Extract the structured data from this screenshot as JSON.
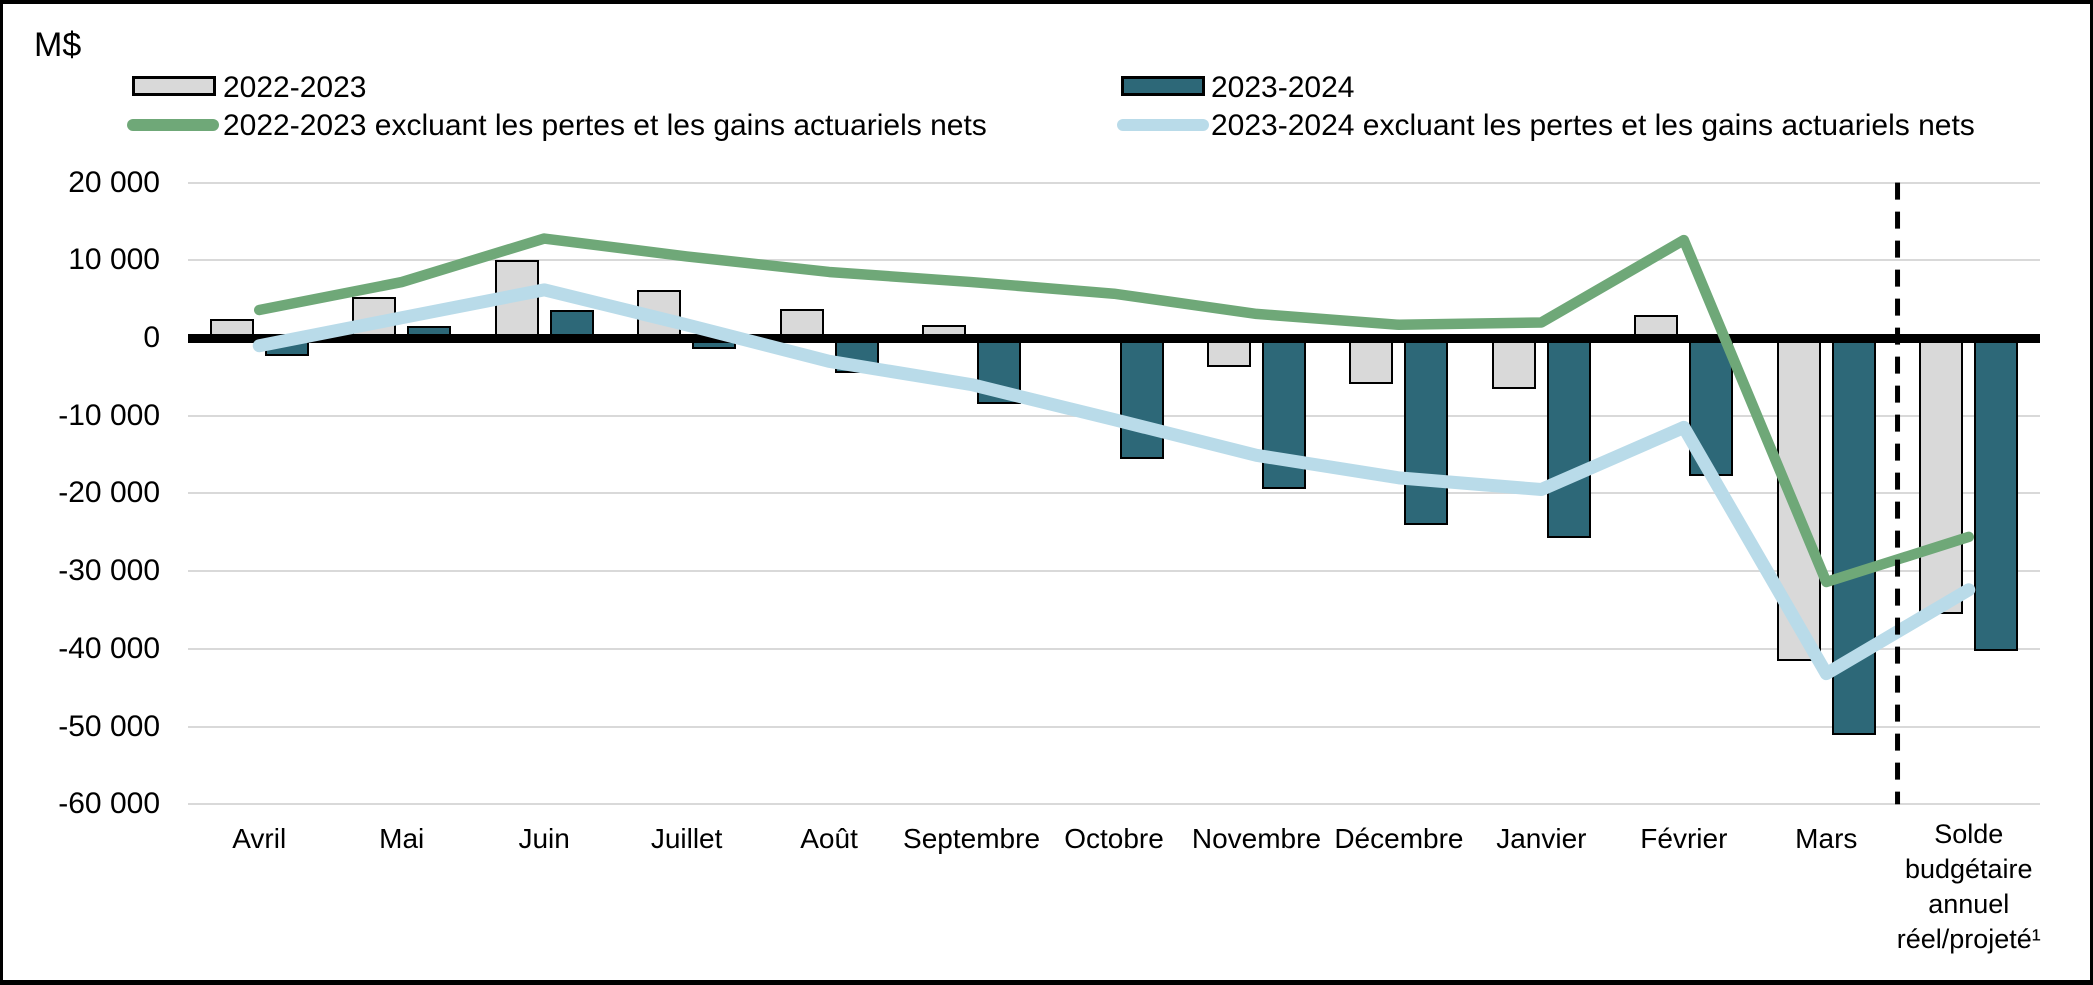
{
  "unit_label": "M$",
  "legend": {
    "items": [
      {
        "label": "2022-2023",
        "swatch": "bar",
        "color": "#d9d9d9"
      },
      {
        "label": "2022-2023 excluant les pertes et les gains actuariels nets",
        "swatch": "line",
        "color": "#6fa878"
      },
      {
        "label": "2023-2024",
        "swatch": "bar",
        "color": "#2d6878"
      },
      {
        "label": "2023-2024 excluant les pertes et les gains actuariels nets",
        "swatch": "line",
        "color": "#b9dbe9"
      }
    ]
  },
  "chart_data": {
    "type": "bar",
    "subtype": "combo-bar-line",
    "title": "",
    "xlabel": "",
    "ylabel": "M$",
    "ylim": [
      -60000,
      20000
    ],
    "y_tick_interval": 10000,
    "y_ticks": [
      {
        "value": 20000,
        "label": "20 000"
      },
      {
        "value": 10000,
        "label": "10 000"
      },
      {
        "value": 0,
        "label": "0"
      },
      {
        "value": -10000,
        "label": "-10 000"
      },
      {
        "value": -20000,
        "label": "-20 000"
      },
      {
        "value": -30000,
        "label": "-30 000"
      },
      {
        "value": -40000,
        "label": "-40 000"
      },
      {
        "value": -50000,
        "label": "-50 000"
      },
      {
        "value": -60000,
        "label": "-60 000"
      }
    ],
    "categories": [
      "Avril",
      "Mai",
      "Juin",
      "Juillet",
      "Août",
      "Septembre",
      "Octobre",
      "Novembre",
      "Décembre",
      "Janvier",
      "Février",
      "Mars",
      "Solde budgétaire annuel réel/projeté¹"
    ],
    "last_category_lines": [
      "Solde",
      "budgétaire",
      "annuel",
      "réel/projeté¹"
    ],
    "separator_before_last_category": true,
    "grid": true,
    "legend_position": "top",
    "series": [
      {
        "name": "2022-2023",
        "type": "bar",
        "color": "#d9d9d9",
        "values": [
          2500,
          5300,
          10100,
          6200,
          3700,
          1700,
          0,
          -3500,
          -5600,
          -6300,
          2900,
          -41300,
          -35300
        ]
      },
      {
        "name": "2023-2024",
        "type": "bar",
        "color": "#2d6878",
        "values": [
          -2000,
          1500,
          3600,
          -1200,
          -4300,
          -8200,
          -15300,
          -19200,
          -23800,
          -25500,
          -17500,
          -50900,
          -40000
        ]
      },
      {
        "name": "2022-2023 excluant les pertes et les gains actuariels nets",
        "type": "line",
        "color": "#6fa878",
        "values": [
          3600,
          7200,
          12800,
          10500,
          8500,
          7200,
          5700,
          3100,
          1700,
          2000,
          12600,
          -31400,
          -25600
        ]
      },
      {
        "name": "2023-2024 excluant les pertes et les gains actuariels nets",
        "type": "line",
        "color": "#b9dbe9",
        "values": [
          -1000,
          2600,
          6200,
          1700,
          -3000,
          -6000,
          -10500,
          -15100,
          -18000,
          -19500,
          -11500,
          -43200,
          -32400
        ]
      }
    ]
  }
}
